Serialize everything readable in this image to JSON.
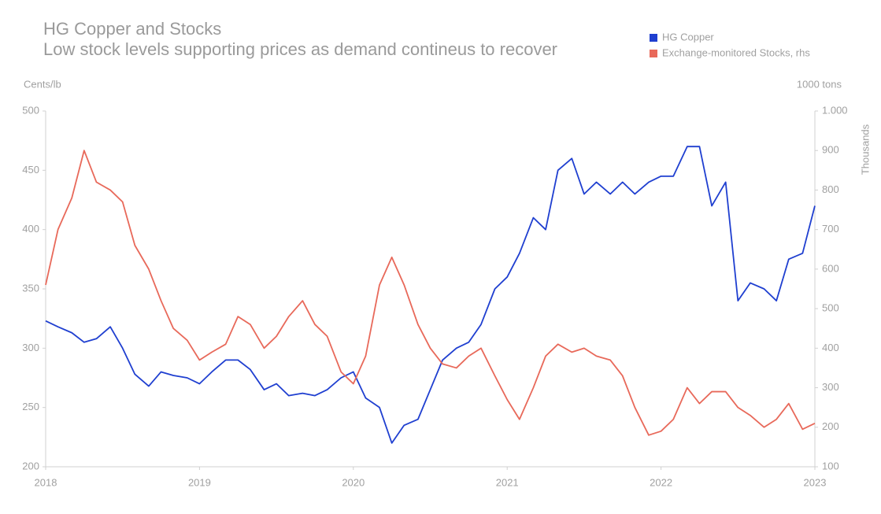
{
  "chart_data": {
    "type": "line",
    "title": "HG Copper and Stocks",
    "subtitle": "Low stock levels supporting prices as demand contineus to recover",
    "y_label": "Cents/lb",
    "y2_label": "1000 tons",
    "y2_axis_title": "Thousands",
    "legend": "top-right",
    "grid": false,
    "xlim": [
      2018,
      2023
    ],
    "xticks": [
      2018,
      2019,
      2020,
      2021,
      2022,
      2023
    ],
    "ylim": [
      200,
      500
    ],
    "yticks": [
      200,
      250,
      300,
      350,
      400,
      450,
      500
    ],
    "y2lim": [
      100,
      1000
    ],
    "y2ticks": [
      100,
      200,
      300,
      400,
      500,
      600,
      700,
      800,
      900,
      {
        "value": 1000,
        "label": "1.000"
      }
    ],
    "x": [
      2018,
      2018.08,
      2018.17,
      2018.25,
      2018.33,
      2018.42,
      2018.5,
      2018.58,
      2018.67,
      2018.75,
      2018.83,
      2018.92,
      2019,
      2019.08,
      2019.17,
      2019.25,
      2019.33,
      2019.42,
      2019.5,
      2019.58,
      2019.67,
      2019.75,
      2019.83,
      2019.92,
      2020,
      2020.08,
      2020.17,
      2020.25,
      2020.33,
      2020.42,
      2020.5,
      2020.58,
      2020.67,
      2020.75,
      2020.83,
      2020.92,
      2021,
      2021.08,
      2021.17,
      2021.25,
      2021.33,
      2021.42,
      2021.5,
      2021.58,
      2021.67,
      2021.75,
      2021.83,
      2021.92,
      2022,
      2022.08,
      2022.17,
      2022.25,
      2022.33,
      2022.42,
      2022.5,
      2022.58,
      2022.67,
      2022.75,
      2022.83,
      2022.92,
      2023
    ],
    "series": [
      {
        "name": "HG Copper",
        "color": "#1f3fd0",
        "values": [
          323,
          318,
          313,
          305,
          308,
          318,
          300,
          278,
          268,
          280,
          277,
          275,
          270,
          280,
          290,
          290,
          282,
          265,
          270,
          260,
          262,
          260,
          265,
          275,
          280,
          258,
          250,
          220,
          235,
          240,
          265,
          290,
          300,
          305,
          320,
          350,
          360,
          380,
          410,
          400,
          450,
          460,
          430,
          440,
          430,
          440,
          430,
          440,
          445,
          445,
          470,
          470,
          420,
          440,
          340,
          355,
          350,
          340,
          375,
          380,
          420
        ]
      },
      {
        "name": "Exchange-monitored Stocks, rhs",
        "color": "#e8695a",
        "axis": "y2",
        "values": [
          560,
          700,
          780,
          900,
          820,
          800,
          770,
          660,
          600,
          520,
          450,
          420,
          370,
          390,
          410,
          480,
          460,
          400,
          430,
          480,
          520,
          460,
          430,
          340,
          310,
          380,
          560,
          630,
          560,
          460,
          400,
          360,
          350,
          380,
          400,
          330,
          270,
          220,
          300,
          380,
          410,
          390,
          400,
          380,
          370,
          330,
          250,
          180,
          190,
          220,
          300,
          260,
          290,
          290,
          250,
          230,
          200,
          220,
          260,
          195,
          210
        ]
      }
    ]
  }
}
